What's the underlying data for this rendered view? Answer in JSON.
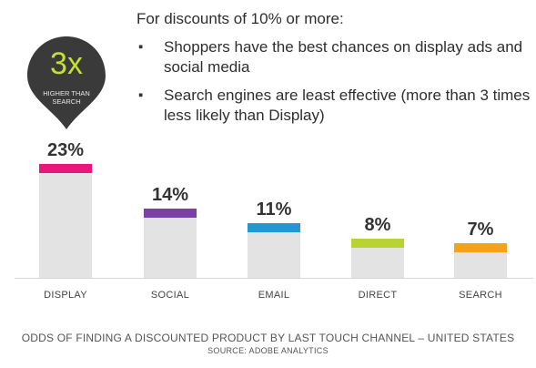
{
  "header": {
    "intro": "For discounts of 10% or more:",
    "bullet_glyph": "▪",
    "bullets": [
      "Shoppers have the best chances on display ads and social media",
      "Search engines are least effective (more than 3 times less likely than Display)"
    ]
  },
  "callout": {
    "big": "3x",
    "small": "HIGHER THAN SEARCH",
    "bg_color": "#3a3a3a",
    "text_color": "#c6e12c"
  },
  "chart_data": {
    "type": "bar",
    "title": "",
    "xlabel": "",
    "ylabel": "",
    "ylim": [
      0,
      23
    ],
    "categories": [
      "DISPLAY",
      "SOCIAL",
      "EMAIL",
      "DIRECT",
      "SEARCH"
    ],
    "values": [
      23,
      14,
      11,
      8,
      7
    ],
    "value_labels": [
      "23%",
      "14%",
      "11%",
      "8%",
      "7%"
    ],
    "cap_colors": [
      "#e6197a",
      "#7b3fa8",
      "#1f9ad6",
      "#b8d432",
      "#f5a21b"
    ],
    "bar_color": "#e3e3e3",
    "grid": false
  },
  "caption": "ODDS OF FINDING A DISCOUNTED PRODUCT BY LAST TOUCH CHANNEL – UNITED STATES",
  "source": "SOURCE: ADOBE ANALYTICS"
}
